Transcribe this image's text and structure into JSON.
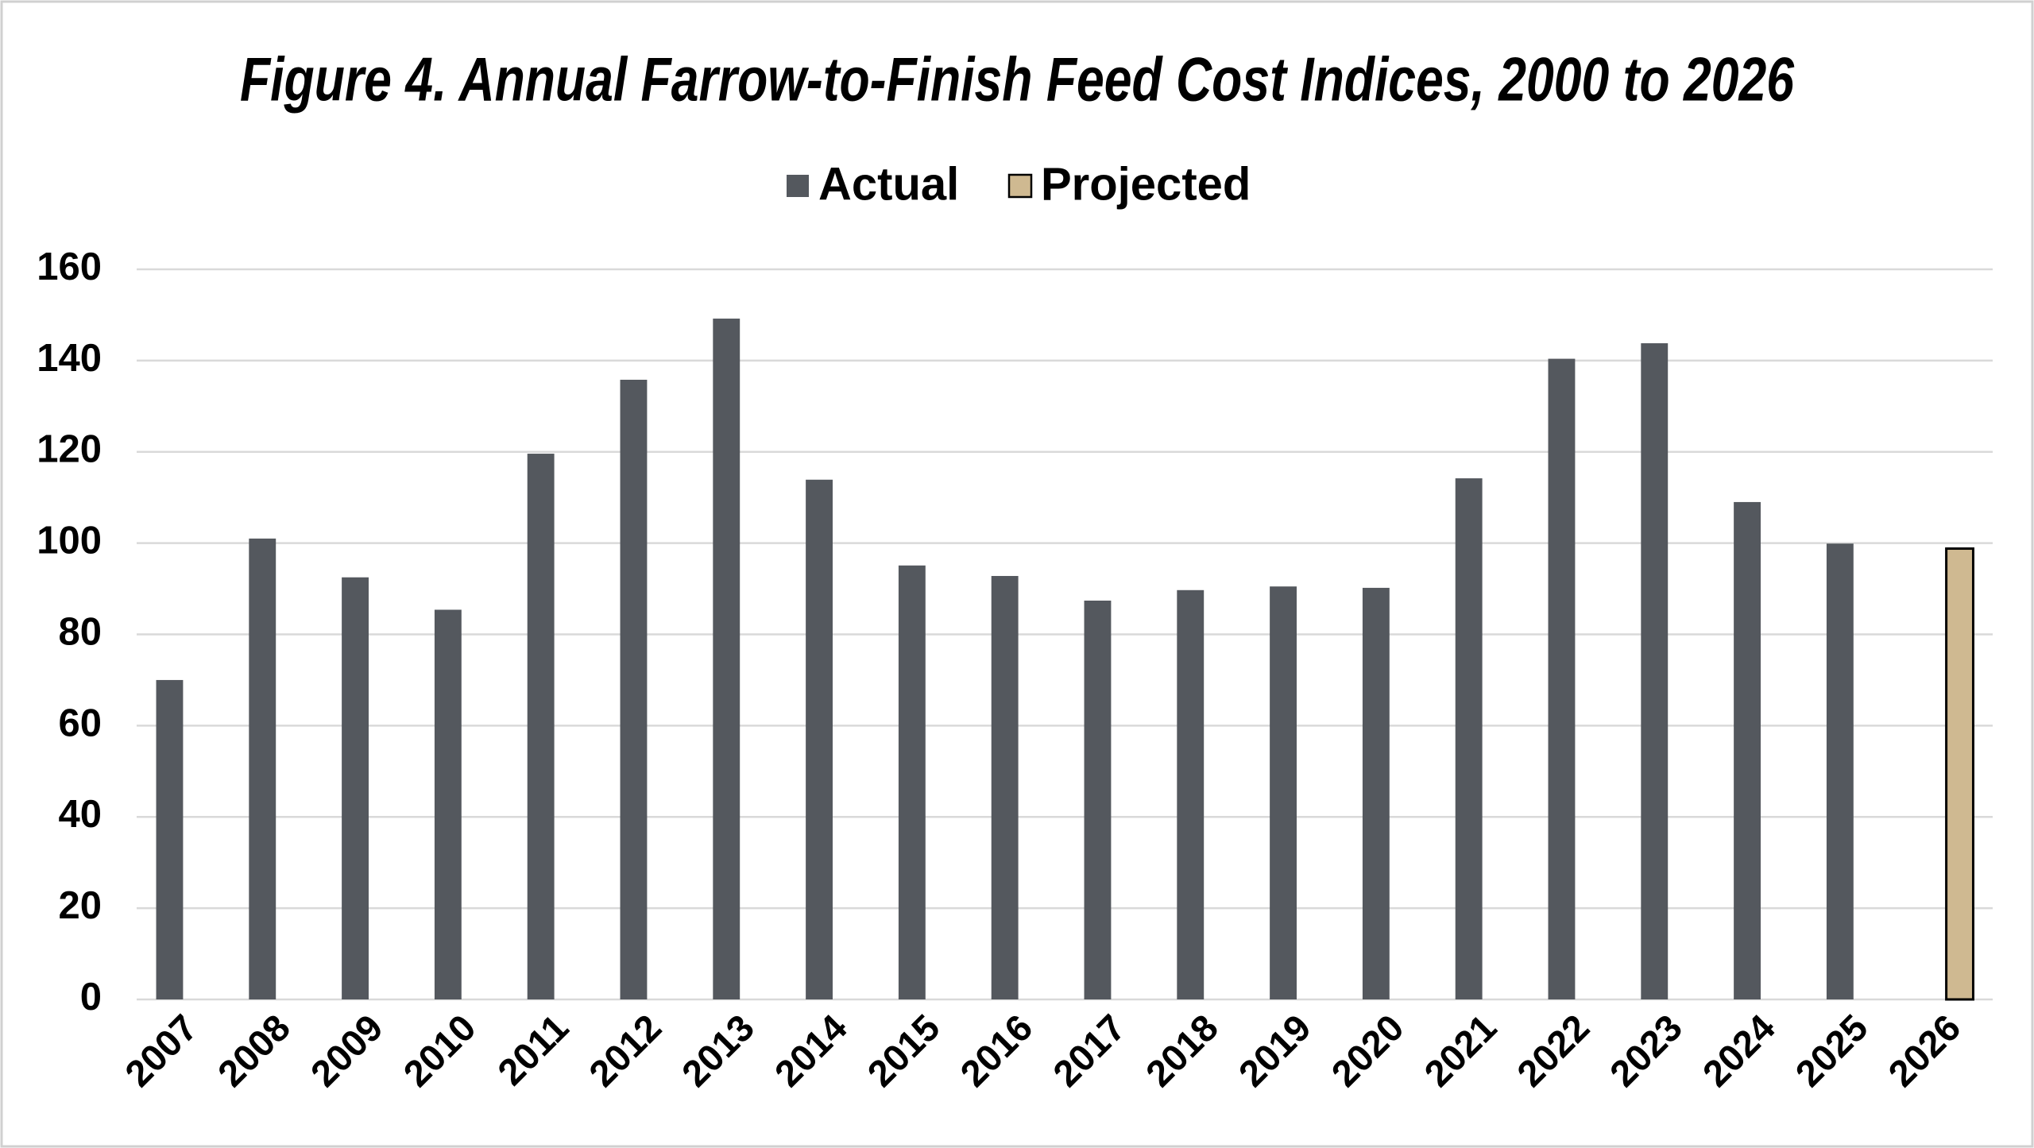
{
  "chart_data": {
    "type": "bar",
    "title": "Figure 4.  Annual Farrow-to-Finish Feed Cost Indices, 2000 to 2026",
    "categories": [
      "2007",
      "2008",
      "2009",
      "2010",
      "2011",
      "2012",
      "2013",
      "2014",
      "2015",
      "2016",
      "2017",
      "2018",
      "2019",
      "2020",
      "2021",
      "2022",
      "2023",
      "2024",
      "2025",
      "2026"
    ],
    "series": [
      {
        "name": "Actual",
        "color": "#54585e",
        "values": [
          70,
          101,
          92.5,
          85.4,
          119.6,
          135.8,
          149.2,
          113.9,
          95.1,
          92.8,
          87.4,
          89.7,
          90.5,
          90.2,
          114.2,
          140.4,
          143.8,
          109,
          99.9,
          null
        ]
      },
      {
        "name": "Projected",
        "color": "#cfb991",
        "edge_color": "#000000",
        "values": [
          null,
          null,
          null,
          null,
          null,
          null,
          null,
          null,
          null,
          null,
          null,
          null,
          null,
          null,
          null,
          null,
          null,
          null,
          null,
          98.8
        ]
      }
    ],
    "ylim": [
      0,
      160
    ],
    "yticks": [
      0,
      20,
      40,
      60,
      80,
      100,
      120,
      140,
      160
    ],
    "grid": true,
    "legend": "top"
  }
}
